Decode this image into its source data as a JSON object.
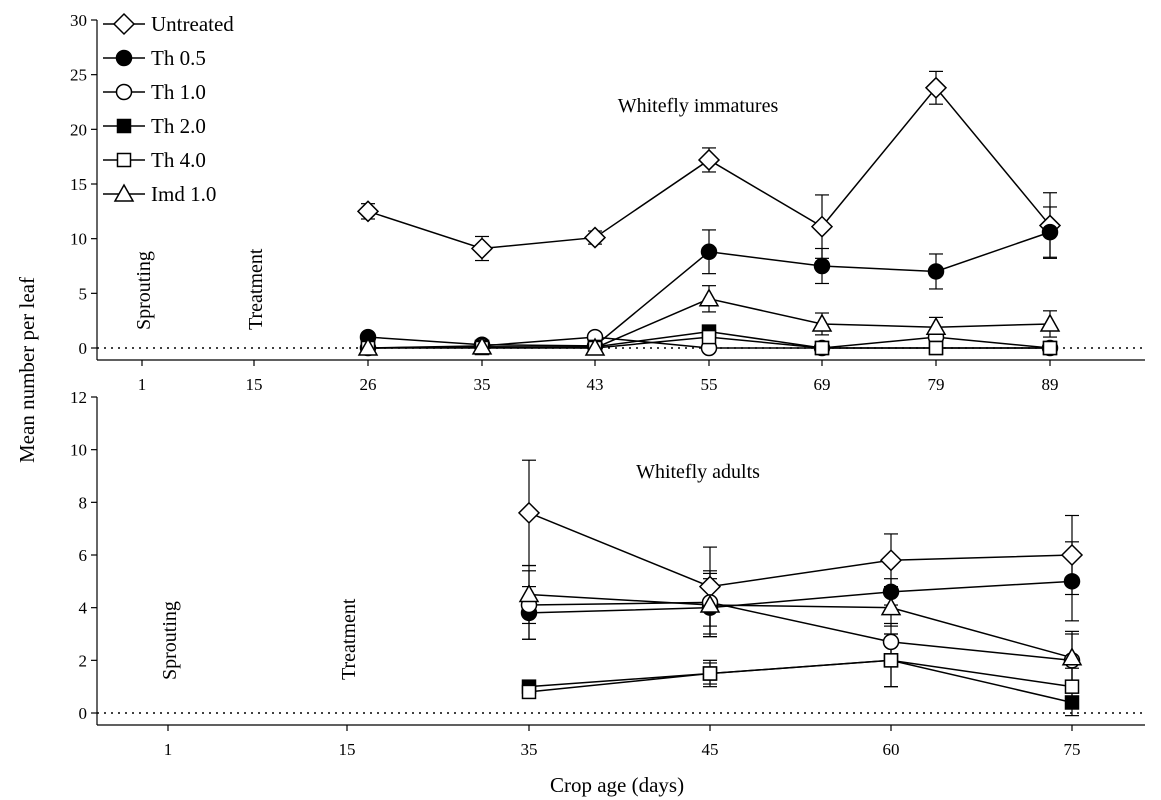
{
  "chart_data": [
    {
      "type": "line",
      "title": "Whitefly immatures",
      "ylabel": "Mean number per leaf",
      "xlabel": "",
      "ylim": [
        0,
        30
      ],
      "yticks": [
        0,
        5,
        10,
        15,
        20,
        25,
        30
      ],
      "categories": [
        "1",
        "15",
        "26",
        "35",
        "43",
        "55",
        "69",
        "79",
        "89"
      ],
      "annotations": [
        {
          "text": "Sprouting",
          "at": "1"
        },
        {
          "text": "Treatment",
          "at": "15"
        }
      ],
      "reference_line": 0,
      "legend": "top-left",
      "series": [
        {
          "name": "Untreated",
          "marker": "diamond-open",
          "x": [
            "26",
            "35",
            "43",
            "55",
            "69",
            "79",
            "89"
          ],
          "values": [
            12.5,
            9.1,
            10.1,
            17.2,
            11.1,
            23.8,
            11.2
          ],
          "errors": [
            0.7,
            1.1,
            0.6,
            1.1,
            2.9,
            1.5,
            3.0
          ]
        },
        {
          "name": "Th 0.5",
          "marker": "circle-filled",
          "x": [
            "26",
            "35",
            "43",
            "55",
            "69",
            "79",
            "89"
          ],
          "values": [
            1.0,
            0.3,
            0.2,
            8.8,
            7.5,
            7.0,
            10.6
          ],
          "errors": [
            0,
            0,
            0,
            2.0,
            1.6,
            1.6,
            2.3
          ]
        },
        {
          "name": "Th 1.0",
          "marker": "circle-open",
          "x": [
            "26",
            "35",
            "43",
            "55",
            "69",
            "79",
            "89"
          ],
          "values": [
            0,
            0.2,
            1.0,
            0,
            0,
            1.0,
            0
          ],
          "errors": [
            0,
            0,
            0,
            0,
            0,
            0,
            0
          ]
        },
        {
          "name": "Th 2.0",
          "marker": "square-filled",
          "x": [
            "26",
            "35",
            "43",
            "55",
            "69",
            "79",
            "89"
          ],
          "values": [
            0,
            0.1,
            0.1,
            1.5,
            0,
            0,
            0
          ],
          "errors": [
            0,
            0,
            0,
            0.5,
            0,
            0,
            0
          ]
        },
        {
          "name": "Th 4.0",
          "marker": "square-open",
          "x": [
            "26",
            "35",
            "43",
            "55",
            "69",
            "79",
            "89"
          ],
          "values": [
            0,
            0,
            0,
            1.0,
            0,
            0,
            0
          ],
          "errors": [
            0,
            0,
            0,
            0.6,
            0,
            0,
            0
          ]
        },
        {
          "name": "Imd 1.0",
          "marker": "triangle-open",
          "x": [
            "26",
            "35",
            "43",
            "55",
            "69",
            "79",
            "89"
          ],
          "values": [
            0,
            0.1,
            0,
            4.5,
            2.2,
            1.9,
            2.2
          ],
          "errors": [
            0,
            0,
            0,
            1.2,
            1.0,
            0.9,
            1.2
          ]
        }
      ]
    },
    {
      "type": "line",
      "title": "Whitefly adults",
      "ylabel": "Mean number per leaf",
      "xlabel": "Crop age (days)",
      "ylim": [
        0,
        12
      ],
      "yticks": [
        0,
        2,
        4,
        6,
        8,
        10,
        12
      ],
      "categories": [
        "1",
        "15",
        "35",
        "45",
        "60",
        "75"
      ],
      "annotations": [
        {
          "text": "Sprouting",
          "at": "1"
        },
        {
          "text": "Treatment",
          "at": "15"
        }
      ],
      "reference_line": 0,
      "series": [
        {
          "name": "Untreated",
          "marker": "diamond-open",
          "x": [
            "35",
            "45",
            "60",
            "75"
          ],
          "values": [
            7.6,
            4.8,
            5.8,
            6.0
          ],
          "errors": [
            2.0,
            1.5,
            1.0,
            1.5
          ]
        },
        {
          "name": "Th 0.5",
          "marker": "circle-filled",
          "x": [
            "35",
            "45",
            "60",
            "75"
          ],
          "values": [
            3.8,
            4.0,
            4.6,
            5.0
          ],
          "errors": [
            1.0,
            1.1,
            0.5,
            1.5
          ]
        },
        {
          "name": "Th 1.0",
          "marker": "circle-open",
          "x": [
            "35",
            "45",
            "60",
            "75"
          ],
          "values": [
            4.1,
            4.2,
            2.7,
            2.0
          ],
          "errors": [
            1.3,
            1.2,
            0.7,
            1.0
          ]
        },
        {
          "name": "Th 2.0",
          "marker": "square-filled",
          "x": [
            "35",
            "45",
            "60",
            "75"
          ],
          "values": [
            1.0,
            1.5,
            2.0,
            0.4
          ],
          "errors": [
            0,
            0.5,
            1.0,
            0.5
          ]
        },
        {
          "name": "Th 4.0",
          "marker": "square-open",
          "x": [
            "35",
            "45",
            "60",
            "75"
          ],
          "values": [
            0.8,
            1.5,
            2.0,
            1.0
          ],
          "errors": [
            0,
            0.4,
            1.0,
            0.7
          ]
        },
        {
          "name": "Imd 1.0",
          "marker": "triangle-open",
          "x": [
            "35",
            "45",
            "60",
            "75"
          ],
          "values": [
            4.5,
            4.1,
            4.0,
            2.1
          ],
          "errors": [
            1.1,
            1.2,
            0.7,
            1.0
          ]
        }
      ]
    }
  ]
}
